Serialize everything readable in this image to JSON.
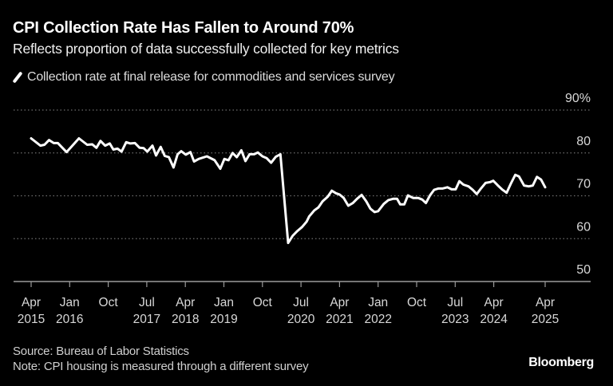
{
  "chart_data": {
    "type": "line",
    "title": "CPI Collection Rate Has Fallen to Around 70%",
    "subtitle": "Reflects proportion of data successfully collected for key metrics",
    "legend": [
      "Collection rate at final release for commodities and services survey"
    ],
    "legend_placement": "top-left",
    "xlabel": "",
    "ylabel": "",
    "ylim": [
      50,
      90
    ],
    "y_ticks": [
      {
        "value": 90,
        "label": "90%"
      },
      {
        "value": 80,
        "label": "80"
      },
      {
        "value": 70,
        "label": "70"
      },
      {
        "value": 60,
        "label": "60"
      },
      {
        "value": 50,
        "label": "50"
      }
    ],
    "xlim": [
      2015.25,
      2025.25
    ],
    "x_ticks": [
      {
        "value": 2015.25,
        "month": "Apr",
        "year": "2015"
      },
      {
        "value": 2016.0,
        "month": "Jan",
        "year": "2016"
      },
      {
        "value": 2016.75,
        "month": "Oct",
        "year": ""
      },
      {
        "value": 2017.5,
        "month": "Jul",
        "year": "2017"
      },
      {
        "value": 2018.25,
        "month": "Apr",
        "year": "2018"
      },
      {
        "value": 2019.0,
        "month": "Jan",
        "year": "2019"
      },
      {
        "value": 2019.75,
        "month": "Oct",
        "year": ""
      },
      {
        "value": 2020.5,
        "month": "Jul",
        "year": "2020"
      },
      {
        "value": 2021.25,
        "month": "Apr",
        "year": "2021"
      },
      {
        "value": 2022.0,
        "month": "Jan",
        "year": "2022"
      },
      {
        "value": 2022.75,
        "month": "Oct",
        "year": ""
      },
      {
        "value": 2023.5,
        "month": "Jul",
        "year": "2023"
      },
      {
        "value": 2024.25,
        "month": "Apr",
        "year": "2024"
      },
      {
        "value": 2025.25,
        "month": "Apr",
        "year": "2025"
      }
    ],
    "grid": true,
    "series": [
      {
        "name": "Collection rate at final release for commodities and services survey",
        "color": "#ffffff",
        "x": [
          2015.25,
          2015.43,
          2015.51,
          2015.6,
          2015.69,
          2015.77,
          2015.94,
          2016.18,
          2016.34,
          2016.44,
          2016.52,
          2016.6,
          2016.69,
          2016.78,
          2016.85,
          2016.93,
          2017.01,
          2017.1,
          2017.18,
          2017.27,
          2017.36,
          2017.44,
          2017.51,
          2017.61,
          2017.68,
          2017.77,
          2017.85,
          2017.93,
          2018.02,
          2018.1,
          2018.17,
          2018.26,
          2018.35,
          2018.42,
          2018.51,
          2018.67,
          2018.82,
          2018.93,
          2019.01,
          2019.09,
          2019.17,
          2019.25,
          2019.34,
          2019.42,
          2019.5,
          2019.59,
          2019.66,
          2019.75,
          2019.83,
          2019.92,
          2020.01,
          2020.1,
          2020.25,
          2020.34,
          2020.43,
          2020.52,
          2020.61,
          2020.66,
          2020.76,
          2020.84,
          2020.92,
          2021.02,
          2021.1,
          2021.18,
          2021.25,
          2021.33,
          2021.42,
          2021.51,
          2021.59,
          2021.68,
          2021.77,
          2021.85,
          2021.93,
          2022.0,
          2022.11,
          2022.2,
          2022.29,
          2022.37,
          2022.43,
          2022.51,
          2022.58,
          2022.68,
          2022.78,
          2022.86,
          2022.93,
          2023.01,
          2023.09,
          2023.17,
          2023.25,
          2023.35,
          2023.43,
          2023.51,
          2023.58,
          2023.66,
          2023.76,
          2023.84,
          2023.92,
          2024.0,
          2024.09,
          2024.18,
          2024.24,
          2024.33,
          2024.41,
          2024.5,
          2024.58,
          2024.67,
          2024.74,
          2024.84,
          2024.93,
          2025.01,
          2025.09,
          2025.17,
          2025.25
        ],
        "values": [
          83.4,
          81.7,
          81.9,
          83.0,
          82.3,
          82.3,
          80.2,
          83.4,
          81.9,
          82.0,
          81.2,
          82.8,
          81.7,
          82.2,
          80.8,
          81.0,
          80.3,
          82.5,
          82.2,
          82.3,
          81.2,
          81.1,
          80.3,
          81.7,
          79.4,
          81.4,
          79.3,
          79.0,
          76.6,
          79.7,
          80.4,
          79.6,
          80.2,
          78.0,
          78.6,
          79.2,
          78.3,
          76.3,
          78.6,
          78.3,
          80.0,
          79.0,
          80.6,
          78.1,
          79.7,
          79.7,
          80.1,
          79.2,
          78.8,
          77.7,
          79.1,
          79.7,
          59.0,
          60.7,
          61.8,
          62.7,
          64.0,
          65.2,
          66.6,
          67.3,
          68.7,
          69.8,
          71.2,
          70.6,
          70.3,
          69.5,
          67.7,
          68.3,
          69.3,
          70.2,
          68.7,
          67.0,
          66.2,
          66.4,
          68.1,
          69.0,
          69.3,
          69.3,
          68.0,
          68.0,
          70.1,
          69.5,
          69.5,
          69.1,
          68.3,
          70.1,
          71.4,
          71.7,
          71.7,
          72.0,
          71.5,
          71.5,
          73.4,
          72.6,
          72.2,
          71.4,
          70.4,
          71.7,
          73.0,
          73.2,
          73.5,
          72.4,
          71.5,
          70.7,
          72.8,
          74.9,
          74.5,
          72.4,
          72.2,
          72.4,
          74.4,
          73.8,
          72.0
        ]
      }
    ]
  },
  "footer": {
    "source": "Source: Bureau of Labor Statistics",
    "note": "Note: CPI housing is measured through a different survey",
    "brand": "Bloomberg"
  },
  "colors": {
    "background": "#000000",
    "line": "#ffffff",
    "grid": "#6e6e6e",
    "axis": "#9a9a9a"
  }
}
